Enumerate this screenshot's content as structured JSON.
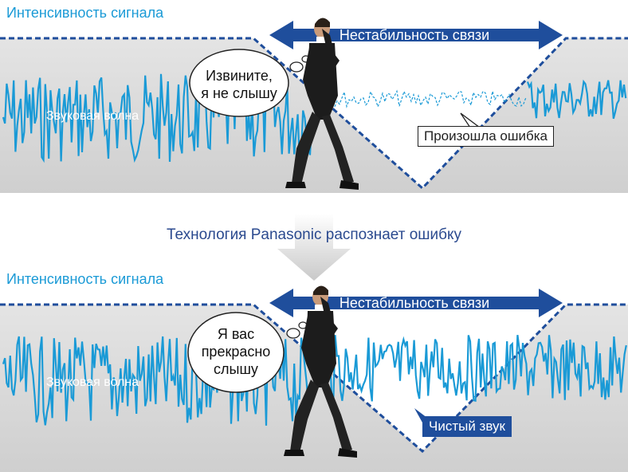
{
  "panels": [
    {
      "signal_label": "Интенсивность сигнала",
      "arrow_label": "Нестабильность связи",
      "wave_label": "Звуковая волна",
      "bubble_lines": [
        "Извините,",
        "я не слышу"
      ],
      "note": "Произошла ошибка"
    },
    {
      "signal_label": "Интенсивность сигнала",
      "arrow_label": "Нестабильность связи",
      "wave_label": "Звуковая волна",
      "bubble_lines": [
        "Я вас",
        "прекрасно",
        "слышу"
      ],
      "note": "Чистый звук"
    }
  ],
  "transition_label": "Технология Panasonic распознает ошибку",
  "colors": {
    "wave": "#1a9ad6",
    "navy": "#1f4e9c",
    "signal_label": "#1a9ad6",
    "middle_label": "#2b4a8f",
    "band": "#d4d4d4"
  }
}
